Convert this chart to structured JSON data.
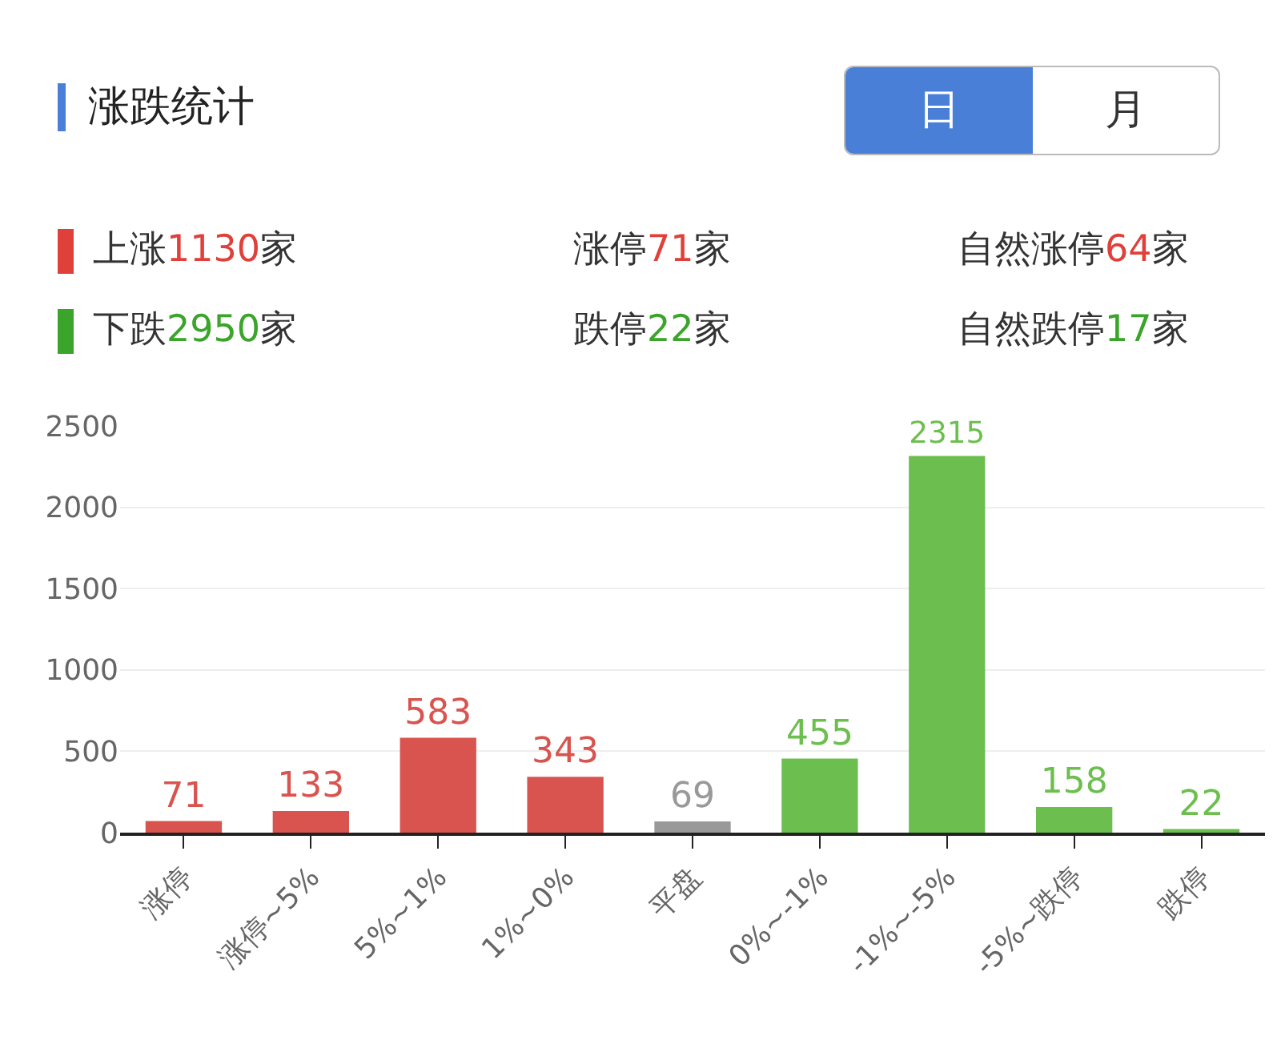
{
  "chart_data": {
    "type": "bar",
    "title": "涨跌统计",
    "categories": [
      "涨停",
      "涨停~5%",
      "5%~1%",
      "1%~0%",
      "平盘",
      "0%~-1%",
      "-1%~-5%",
      "-5%~跌停",
      "跌停"
    ],
    "values": [
      71,
      133,
      583,
      343,
      69,
      455,
      2315,
      158,
      22
    ],
    "colors": [
      "#d9534f",
      "#d9534f",
      "#d9534f",
      "#d9534f",
      "#999999",
      "#6cbf4f",
      "#6cbf4f",
      "#6cbf4f",
      "#6cbf4f"
    ],
    "ylim": [
      0,
      2500
    ],
    "yticks": [
      0,
      500,
      1000,
      1500,
      2000,
      2500
    ],
    "grid": "y",
    "data_labels": true,
    "annotations": [
      "日",
      "月",
      "上涨1130家",
      "涨停71家",
      "自然涨停64家",
      "下跌2950家",
      "跌停22家",
      "自然跌停17家"
    ]
  }
}
